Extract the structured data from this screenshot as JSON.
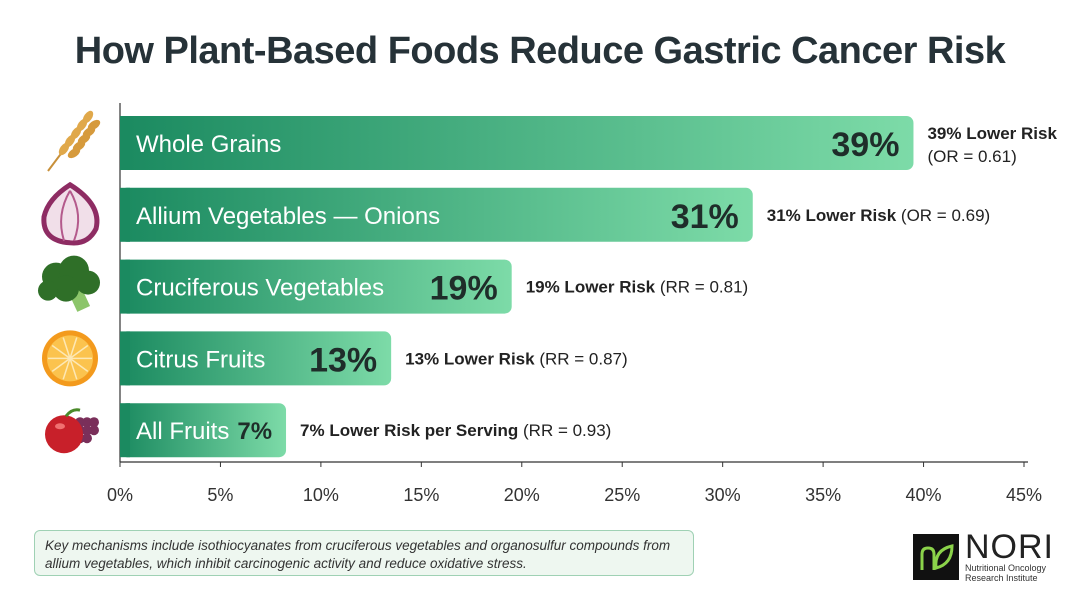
{
  "chart_data": {
    "type": "bar",
    "orientation": "horizontal",
    "title": "How Plant-Based Foods Reduce Gastric Cancer Risk",
    "categories": [
      "Whole Grains",
      "Allium Vegetables — Onions",
      "Cruciferous Vegetables",
      "Citrus Fruits",
      "All Fruits"
    ],
    "values": [
      39,
      31,
      19,
      13,
      7
    ],
    "value_labels": [
      "39%",
      "31%",
      "19%",
      "13%",
      "7%"
    ],
    "annotations": [
      {
        "bold": "39% Lower Risk",
        "rest": "(OR = 0.61)"
      },
      {
        "bold": "31% Lower Risk",
        "rest": "(OR = 0.69)"
      },
      {
        "bold": "19% Lower Risk",
        "rest": "(RR = 0.81)"
      },
      {
        "bold": "13% Lower Risk",
        "rest": "(RR = 0.87)"
      },
      {
        "bold": "7% Lower Risk per Serving",
        "rest": "(RR = 0.93)"
      }
    ],
    "icons": [
      "wheat-icon",
      "onion-icon",
      "broccoli-icon",
      "orange-icon",
      "apple-grapes-icon"
    ],
    "xlim": [
      0,
      45
    ],
    "xticks": [
      "0%",
      "5%",
      "10%",
      "15%",
      "20%",
      "25%",
      "30%",
      "35%",
      "40%",
      "45%"
    ],
    "xlabel": "",
    "ylabel": "",
    "grid": false,
    "colors": {
      "bar_start": "#1b8a60",
      "bar_end": "#7ddba8",
      "value_text": "#1f2d2a"
    }
  },
  "note": "Key mechanisms include isothiocyanates from cruciferous vegetables and organosulfur compounds from allium vegetables, which inhibit carcinogenic activity and reduce oxidative stress.",
  "logo": {
    "name": "NORI",
    "subtitle_line1": "Nutritional Oncology",
    "subtitle_line2": "Research Institute"
  }
}
